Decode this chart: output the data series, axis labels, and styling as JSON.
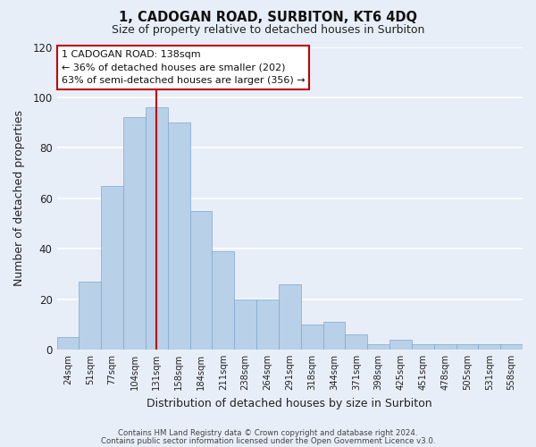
{
  "title": "1, CADOGAN ROAD, SURBITON, KT6 4DQ",
  "subtitle": "Size of property relative to detached houses in Surbiton",
  "xlabel": "Distribution of detached houses by size in Surbiton",
  "ylabel": "Number of detached properties",
  "bar_labels": [
    "24sqm",
    "51sqm",
    "77sqm",
    "104sqm",
    "131sqm",
    "158sqm",
    "184sqm",
    "211sqm",
    "238sqm",
    "264sqm",
    "291sqm",
    "318sqm",
    "344sqm",
    "371sqm",
    "398sqm",
    "425sqm",
    "451sqm",
    "478sqm",
    "505sqm",
    "531sqm",
    "558sqm"
  ],
  "bar_values": [
    5,
    27,
    65,
    92,
    96,
    90,
    55,
    39,
    20,
    20,
    26,
    10,
    11,
    6,
    2,
    4,
    2,
    2,
    2,
    2,
    2
  ],
  "bar_color": "#b8d0e8",
  "highlight_bar_index": 4,
  "highlight_color": "#c00000",
  "annotation_title": "1 CADOGAN ROAD: 138sqm",
  "annotation_line1": "← 36% of detached houses are smaller (202)",
  "annotation_line2": "63% of semi-detached houses are larger (356) →",
  "annotation_box_color": "#ffffff",
  "annotation_box_edge_color": "#c00000",
  "ylim": [
    0,
    120
  ],
  "yticks": [
    0,
    20,
    40,
    60,
    80,
    100,
    120
  ],
  "footer1": "Contains HM Land Registry data © Crown copyright and database right 2024.",
  "footer2": "Contains public sector information licensed under the Open Government Licence v3.0.",
  "bg_color": "#e8eef8",
  "grid_color": "#ffffff"
}
